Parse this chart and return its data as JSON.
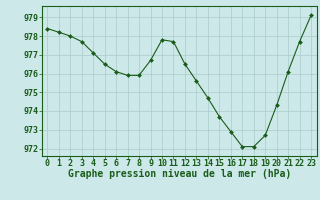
{
  "x": [
    0,
    1,
    2,
    3,
    4,
    5,
    6,
    7,
    8,
    9,
    10,
    11,
    12,
    13,
    14,
    15,
    16,
    17,
    18,
    19,
    20,
    21,
    22,
    23
  ],
  "y": [
    978.4,
    978.2,
    978.0,
    977.7,
    977.1,
    976.5,
    976.1,
    975.9,
    975.9,
    976.7,
    977.8,
    977.7,
    976.5,
    975.6,
    974.7,
    973.7,
    972.9,
    972.1,
    972.1,
    972.7,
    974.3,
    976.1,
    977.7,
    979.1
  ],
  "line_color": "#1a5c1a",
  "marker_color": "#1a5c1a",
  "bg_color": "#cce8e8",
  "grid_color": "#aacccc",
  "title": "Graphe pression niveau de la mer (hPa)",
  "ylabel_vals": [
    972,
    973,
    974,
    975,
    976,
    977,
    978,
    979
  ],
  "xlim": [
    -0.5,
    23.5
  ],
  "ylim": [
    971.6,
    979.6
  ],
  "tick_label_color": "#1a5c1a",
  "title_color": "#1a5c1a",
  "title_fontsize": 7.0,
  "tick_fontsize": 6.0
}
